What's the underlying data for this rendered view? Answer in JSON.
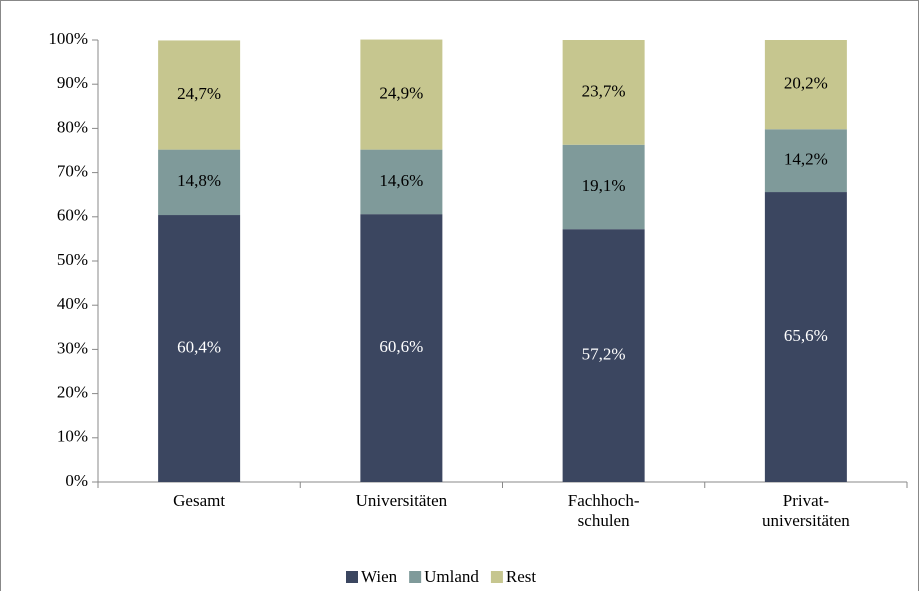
{
  "chart_data": {
    "type": "stacked_bar",
    "categories": [
      "Gesamt",
      "Universitäten",
      "Fachhoch-\nschulen",
      "Privat-\nuniversitäten"
    ],
    "series": [
      {
        "name": "Wien",
        "color": "#3b4660",
        "values": [
          60.4,
          60.6,
          57.2,
          65.6
        ],
        "value_labels": [
          "60,4%",
          "60,6%",
          "57,2%",
          "65,6%"
        ]
      },
      {
        "name": "Umland",
        "color": "#7f9a9a",
        "values": [
          14.8,
          14.6,
          19.1,
          14.2
        ],
        "value_labels": [
          "14,8%",
          "14,6%",
          "19,1%",
          "14,2%"
        ]
      },
      {
        "name": "Rest",
        "color": "#c6c68f",
        "values": [
          24.7,
          24.9,
          23.7,
          20.2
        ],
        "value_labels": [
          "24,7%",
          "24,9%",
          "23,7%",
          "20,2%"
        ]
      }
    ],
    "ylim": [
      0,
      100
    ],
    "yticks": [
      {
        "value": 0,
        "label": "0%"
      },
      {
        "value": 10,
        "label": "10%"
      },
      {
        "value": 20,
        "label": "20%"
      },
      {
        "value": 30,
        "label": "30%"
      },
      {
        "value": 40,
        "label": "40%"
      },
      {
        "value": 50,
        "label": "50%"
      },
      {
        "value": 60,
        "label": "60%"
      },
      {
        "value": 70,
        "label": "70%"
      },
      {
        "value": 80,
        "label": "80%"
      },
      {
        "value": 90,
        "label": "90%"
      },
      {
        "value": 100,
        "label": "100%"
      }
    ],
    "legend": "bottom"
  }
}
